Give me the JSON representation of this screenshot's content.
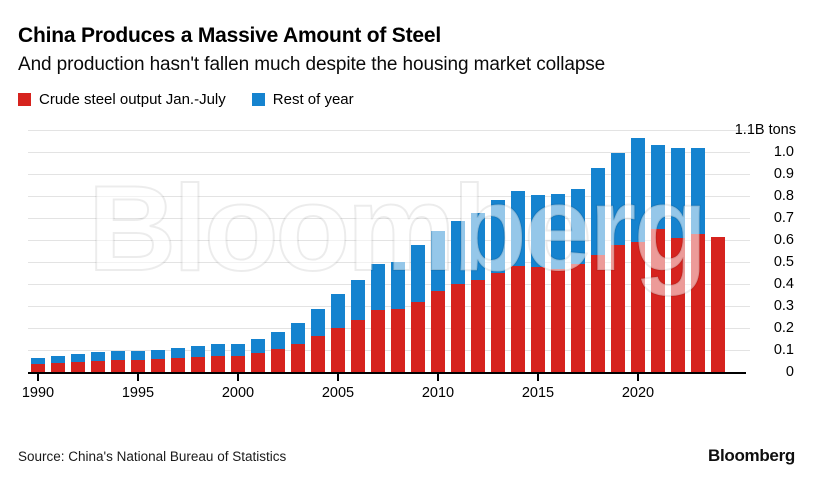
{
  "header": {
    "title": "China Produces a Massive Amount of Steel",
    "subtitle": "And production hasn't fallen much despite the housing market collapse"
  },
  "legend": [
    {
      "label": "Crude steel output Jan.-July",
      "color": "#d6231e"
    },
    {
      "label": "Rest of year",
      "color": "#1583cf"
    }
  ],
  "chart_data": {
    "type": "bar",
    "stacked": true,
    "title": "China Produces a Massive Amount of Steel",
    "subtitle": "And production hasn't fallen much despite the housing market collapse",
    "unit_label": "1.1B tons",
    "ylim": [
      0,
      1.1
    ],
    "ytick_step": 0.1,
    "ytick_labels": [
      "0",
      "0.1",
      "0.2",
      "0.3",
      "0.4",
      "0.5",
      "0.6",
      "0.7",
      "0.8",
      "0.9",
      "1.0"
    ],
    "xtick_labels": [
      "1990",
      "1995",
      "2000",
      "2005",
      "2010",
      "2015",
      "2020"
    ],
    "grid": true,
    "legend_position": "top-left",
    "watermark": "Bloomberg",
    "x": [
      1990,
      1991,
      1992,
      1993,
      1994,
      1995,
      1996,
      1997,
      1998,
      1999,
      2000,
      2001,
      2002,
      2003,
      2004,
      2005,
      2006,
      2007,
      2008,
      2009,
      2010,
      2011,
      2012,
      2013,
      2014,
      2015,
      2016,
      2017,
      2018,
      2019,
      2020,
      2021,
      2022,
      2023,
      2024
    ],
    "series": [
      {
        "name": "Crude steel output Jan.-July",
        "color": "#d6231e",
        "values": [
          0.038,
          0.041,
          0.046,
          0.051,
          0.053,
          0.055,
          0.058,
          0.062,
          0.066,
          0.071,
          0.074,
          0.086,
          0.104,
          0.127,
          0.162,
          0.2,
          0.237,
          0.282,
          0.285,
          0.317,
          0.366,
          0.399,
          0.419,
          0.449,
          0.48,
          0.476,
          0.466,
          0.492,
          0.533,
          0.577,
          0.593,
          0.649,
          0.609,
          0.627,
          0.614
        ]
      },
      {
        "name": "Rest of year",
        "color": "#1583cf",
        "values": [
          0.028,
          0.03,
          0.035,
          0.039,
          0.04,
          0.04,
          0.043,
          0.047,
          0.049,
          0.053,
          0.055,
          0.065,
          0.078,
          0.095,
          0.121,
          0.153,
          0.183,
          0.207,
          0.215,
          0.26,
          0.273,
          0.286,
          0.305,
          0.33,
          0.342,
          0.328,
          0.342,
          0.34,
          0.395,
          0.419,
          0.472,
          0.384,
          0.409,
          0.392,
          0.0
        ]
      }
    ],
    "annual_totals": [
      0.066,
      0.071,
      0.081,
      0.09,
      0.093,
      0.095,
      0.101,
      0.109,
      0.115,
      0.124,
      0.129,
      0.151,
      0.182,
      0.222,
      0.283,
      0.353,
      0.42,
      0.489,
      0.5,
      0.577,
      0.639,
      0.685,
      0.724,
      0.779,
      0.822,
      0.804,
      0.808,
      0.832,
      0.928,
      0.996,
      1.065,
      1.033,
      1.018,
      1.019,
      0.614
    ]
  },
  "footer": {
    "source": "Source: China's National Bureau of Statistics",
    "brand": "Bloomberg"
  }
}
